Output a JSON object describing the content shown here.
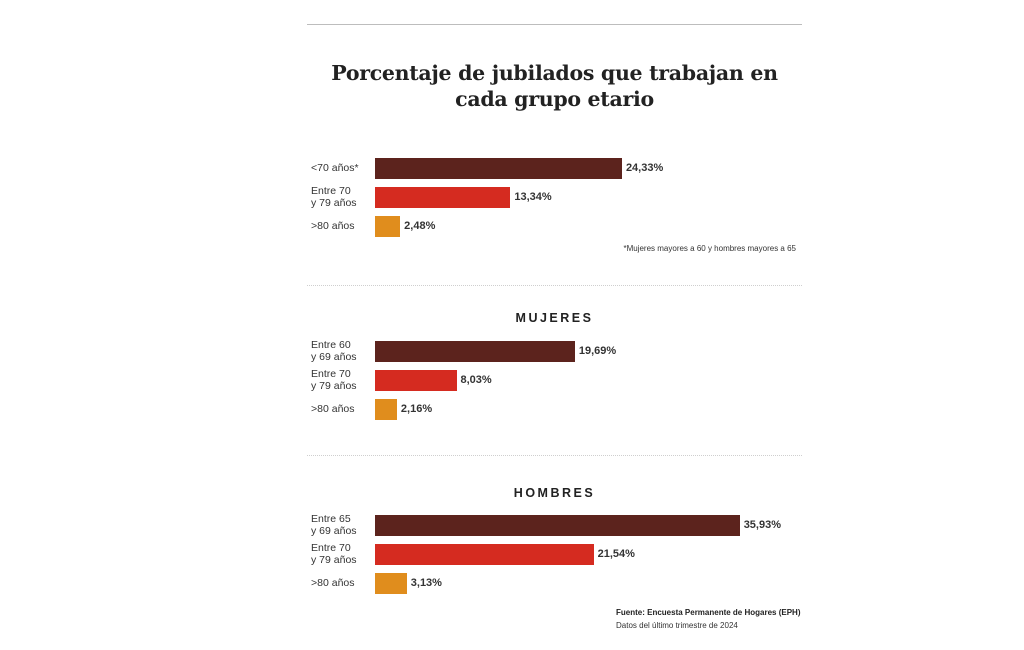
{
  "title": "Porcentaje de jubilados que trabajan en cada grupo etario",
  "colors": {
    "dark": "#5c231d",
    "red": "#d52b20",
    "orange": "#e08d1d"
  },
  "chart_data": [
    {
      "type": "bar",
      "title": "",
      "categories": [
        "<70 años*",
        "Entre 70\ny 79 años",
        ">80 años"
      ],
      "values": [
        24.33,
        13.34,
        2.48
      ],
      "labels": [
        "24,33%",
        "13,34%",
        "2,48%"
      ],
      "unit": "%",
      "xlim": [
        0,
        42
      ]
    },
    {
      "type": "bar",
      "title": "MUJERES",
      "categories": [
        "Entre 60\ny 69 años",
        "Entre 70\ny 79 años",
        ">80 años"
      ],
      "values": [
        19.69,
        8.03,
        2.16
      ],
      "labels": [
        "19,69%",
        "8,03%",
        "2,16%"
      ],
      "unit": "%",
      "xlim": [
        0,
        42
      ]
    },
    {
      "type": "bar",
      "title": "HOMBRES",
      "categories": [
        "Entre 65\ny 69 años",
        "Entre 70\ny 79 años",
        ">80 años"
      ],
      "values": [
        35.93,
        21.54,
        3.13
      ],
      "labels": [
        "35,93%",
        "21,54%",
        "3,13%"
      ],
      "unit": "%",
      "xlim": [
        0,
        42
      ]
    }
  ],
  "note": "*Mujeres mayores a 60 y hombres mayores a 65",
  "source": "Fuente: Encuesta Permanente de Hogares (EPH)",
  "source_detail": "Datos del último trimestre de 2024"
}
